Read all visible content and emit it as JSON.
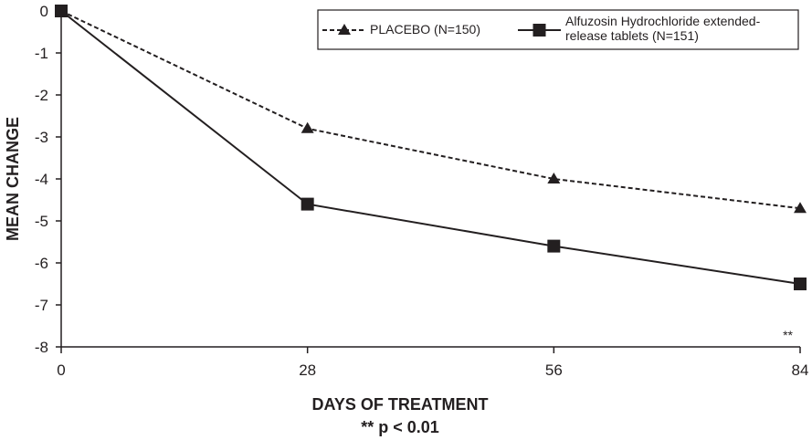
{
  "chart_data": {
    "type": "line",
    "title": "",
    "xlabel": "DAYS OF TREATMENT",
    "subtitle": "** p < 0.01",
    "ylabel": "MEAN CHANGE",
    "x": [
      0,
      28,
      56,
      84
    ],
    "xticks": [
      "0",
      "28",
      "56",
      "84"
    ],
    "yticks": [
      "0",
      "-1",
      "-2",
      "-3",
      "-4",
      "-5",
      "-6",
      "-7",
      "-8"
    ],
    "xlim": [
      0,
      84
    ],
    "ylim": [
      -8,
      0
    ],
    "grid": false,
    "legend_position": "top-right",
    "series": [
      {
        "name": "PLACEBO (N=150)",
        "legend_lines": [
          "PLACEBO (N=150)"
        ],
        "values": [
          0,
          -2.8,
          -4.0,
          -4.7
        ],
        "marker": "triangle",
        "line_style": "dashed",
        "color": "#231f20"
      },
      {
        "name": "Alfuzosin Hydrochloride extended-release tablets (N=151)",
        "legend_lines": [
          "Alfuzosin Hydrochloride extended-",
          "release tablets (N=151)"
        ],
        "values": [
          0,
          -4.6,
          -5.6,
          -6.5
        ],
        "marker": "square",
        "line_style": "solid",
        "color": "#231f20"
      }
    ],
    "annotations": [
      {
        "text": "**",
        "x": 84
      }
    ]
  }
}
